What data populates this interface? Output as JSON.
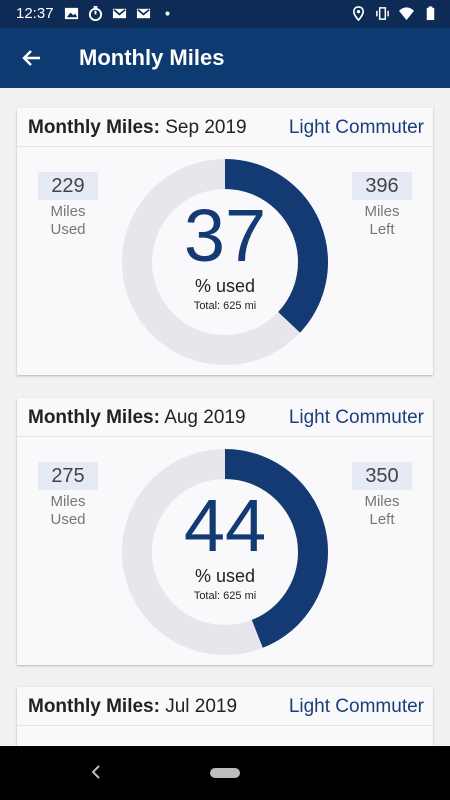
{
  "status_bar": {
    "time": "12:37",
    "left_icons": [
      "image-icon",
      "timer-icon",
      "gmail-icon",
      "gmail-icon",
      "dot-icon"
    ],
    "right_icons": [
      "location-icon",
      "vibrate-icon",
      "wifi-icon",
      "battery-icon"
    ]
  },
  "app_bar": {
    "title": "Monthly Miles",
    "back_icon": "arrow-back-icon"
  },
  "colors": {
    "primary": "#0e3a72",
    "status": "#0d2b55",
    "ring_used": "#133a72",
    "ring_track": "#e6e6ec"
  },
  "cards": [
    {
      "title_label": "Monthly Miles:",
      "month": "Sep 2019",
      "plan": "Light Commuter",
      "used": {
        "value": "229",
        "line1": "Miles",
        "line2": "Used"
      },
      "left": {
        "value": "396",
        "line1": "Miles",
        "line2": "Left"
      },
      "percent": "37",
      "percent_value": 37,
      "percent_label": "% used",
      "total": "Total: 625 mi"
    },
    {
      "title_label": "Monthly Miles:",
      "month": "Aug 2019",
      "plan": "Light Commuter",
      "used": {
        "value": "275",
        "line1": "Miles",
        "line2": "Used"
      },
      "left": {
        "value": "350",
        "line1": "Miles",
        "line2": "Left"
      },
      "percent": "44",
      "percent_value": 44,
      "percent_label": "% used",
      "total": "Total: 625 mi"
    },
    {
      "title_label": "Monthly Miles:",
      "month": "Jul 2019",
      "plan": "Light Commuter"
    }
  ],
  "nav_bar": {
    "back_icon": "nav-back-icon",
    "home_icon": "nav-home-pill"
  }
}
